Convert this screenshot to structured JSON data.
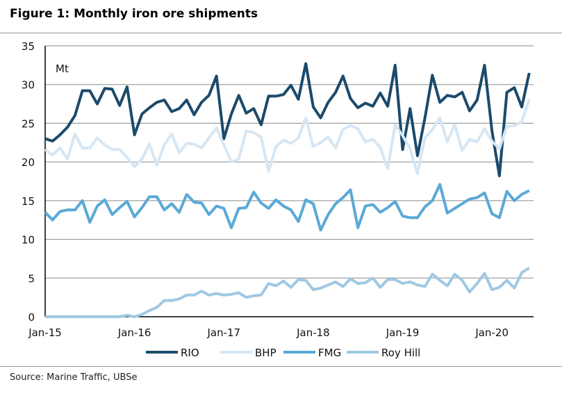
{
  "title": "Figure 1: Monthly iron ore shipments",
  "source": "Source:  Marine Traffic, UBSe",
  "chart_data": {
    "type": "line",
    "title": "Figure 1: Monthly iron ore shipments",
    "ylabel": "Mt",
    "xlabel": "",
    "ylim": [
      0,
      35
    ],
    "yticks": [
      0,
      5,
      10,
      15,
      20,
      25,
      30,
      35
    ],
    "xtick_labels": [
      "Jan-15",
      "Jan-16",
      "Jan-17",
      "Jan-18",
      "Jan-19",
      "Jan-20"
    ],
    "x_start": "Jan-15",
    "x_end": "Jun-20",
    "frequency": "monthly",
    "grid": "horizontal",
    "legend": "bottom",
    "series": [
      {
        "name": "RIO",
        "color": "#1b4a6b",
        "values": [
          23,
          22.7,
          23.5,
          24.5,
          26,
          29.2,
          29.2,
          27.5,
          29.5,
          29.4,
          27.3,
          29.7,
          23.5,
          26.2,
          27,
          27.7,
          28,
          26.5,
          26.9,
          28,
          26.1,
          27.7,
          28.6,
          31.1,
          23,
          26.2,
          28.6,
          26.3,
          26.9,
          24.8,
          28.5,
          28.5,
          28.7,
          29.9,
          28.1,
          32.7,
          27.1,
          25.7,
          27.7,
          29,
          31.1,
          28.2,
          27,
          27.6,
          27.2,
          28.9,
          27.2,
          32.5,
          21.6,
          26.9,
          20.8,
          25.7,
          31.2,
          27.7,
          28.6,
          28.4,
          29,
          26.6,
          28,
          32.5,
          24,
          18.2,
          29,
          29.6,
          27.1,
          31.5
        ]
      },
      {
        "name": "BHP",
        "color": "#d6e6f3",
        "values": [
          21.6,
          20.9,
          21.8,
          20.4,
          23.6,
          21.8,
          21.8,
          23.1,
          22.2,
          21.6,
          21.6,
          20.6,
          19.4,
          20.4,
          22.3,
          19.6,
          22.2,
          23.6,
          21.2,
          22.4,
          22.3,
          21.8,
          23.1,
          24.4,
          22.2,
          20.0,
          20.4,
          24.0,
          23.8,
          23.2,
          18.8,
          22.0,
          22.8,
          22.4,
          23.1,
          25.7,
          22.0,
          22.5,
          23.2,
          21.8,
          24.2,
          24.7,
          24.3,
          22.6,
          22.9,
          21.9,
          19.1,
          24.8,
          23.4,
          21.7,
          18.5,
          23.1,
          24.2,
          25.7,
          22.6,
          24.8,
          21.5,
          22.9,
          22.6,
          24.3,
          22.7,
          21.7,
          24.6,
          24.7,
          25.2,
          28.1
        ]
      },
      {
        "name": "FMG",
        "color": "#5aa9d6",
        "values": [
          13.5,
          12.5,
          13.6,
          13.8,
          13.8,
          15.0,
          12.2,
          14.3,
          15.1,
          13.2,
          14.1,
          14.9,
          12.9,
          14.1,
          15.5,
          15.5,
          13.8,
          14.6,
          13.5,
          15.8,
          14.8,
          14.7,
          13.2,
          14.3,
          14.0,
          11.5,
          14.0,
          14.1,
          16.1,
          14.7,
          14.0,
          15.1,
          14.3,
          13.8,
          12.3,
          15.1,
          14.6,
          11.2,
          13.2,
          14.6,
          15.4,
          16.4,
          11.5,
          14.3,
          14.5,
          13.5,
          14.1,
          14.9,
          13.0,
          12.8,
          12.8,
          14.2,
          15.0,
          17.1,
          13.4,
          14.0,
          14.6,
          15.2,
          15.4,
          16.0,
          13.3,
          12.8,
          16.2,
          15.0,
          15.8,
          16.3
        ]
      },
      {
        "name": "Roy Hill",
        "color": "#9fc8e3",
        "values": [
          0,
          0,
          0,
          0,
          0,
          0,
          0,
          0,
          0,
          0,
          0,
          0.2,
          0,
          0.3,
          0.8,
          1.2,
          2.1,
          2.1,
          2.3,
          2.8,
          2.8,
          3.3,
          2.8,
          3.0,
          2.8,
          2.9,
          3.1,
          2.5,
          2.7,
          2.8,
          4.3,
          4.0,
          4.6,
          3.8,
          4.8,
          4.7,
          3.5,
          3.7,
          4.1,
          4.5,
          3.9,
          4.9,
          4.3,
          4.4,
          5.0,
          3.8,
          4.8,
          4.8,
          4.3,
          4.5,
          4.1,
          3.9,
          5.5,
          4.7,
          4.0,
          5.5,
          4.7,
          3.2,
          4.3,
          5.6,
          3.5,
          3.8,
          4.7,
          3.7,
          5.7,
          6.3
        ]
      }
    ]
  }
}
